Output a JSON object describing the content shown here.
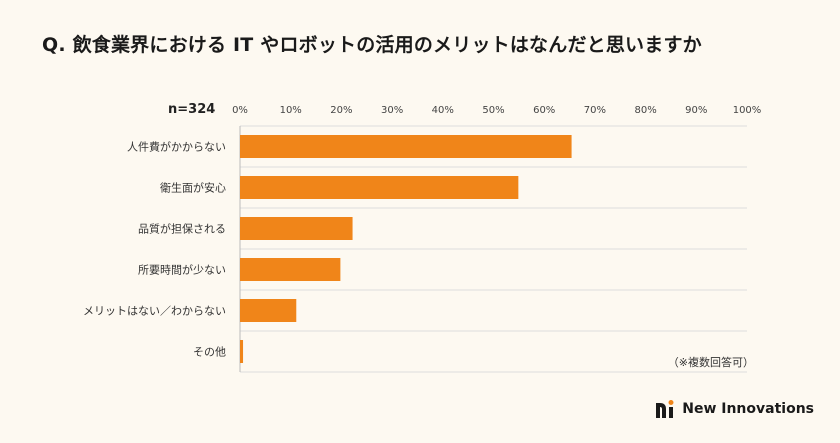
{
  "title": "Q. 飲食業界における IT やロボットの活用のメリットはなんだと思いますか",
  "note": "（※複数回答可）",
  "brand": {
    "name": "New Innovations",
    "icon": "ni-logo-icon"
  },
  "colors": {
    "bar": "#f08519",
    "background": "#fdf9f1",
    "grid": "#dddddd"
  },
  "chart_data": {
    "type": "bar",
    "orientation": "horizontal",
    "sample_label": "n=324",
    "categories": [
      "人件費がかからない",
      "衛生面が安心",
      "品質が担保される",
      "所要時間が少ない",
      "メリットはない／わからない",
      "その他"
    ],
    "values": [
      65.4,
      54.9,
      22.2,
      19.8,
      11.1,
      0.6
    ],
    "ticks": [
      "0%",
      "10%",
      "20%",
      "30%",
      "40%",
      "50%",
      "60%",
      "70%",
      "80%",
      "90%",
      "100%"
    ],
    "xlim": [
      0,
      100
    ],
    "grid": true
  }
}
